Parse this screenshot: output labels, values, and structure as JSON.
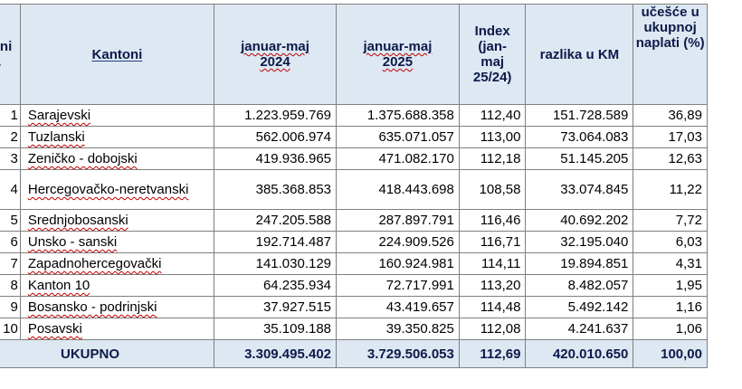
{
  "header": {
    "rb": "Redni br.",
    "kantoni": "Kantoni",
    "col_2024": "januar-maj 2024",
    "col_2025": "januar-maj 2025",
    "index": "Index (jan-maj 25/24)",
    "razlika": "razlika u KM",
    "ucesce": "učešće u ukupnoj naplati (%)"
  },
  "rows": [
    {
      "no": "1",
      "name": "Sarajevski",
      "y2024": "1.223.959.769",
      "y2025": "1.375.688.358",
      "index": "112,40",
      "razlika": "151.728.589",
      "ucesce": "36,89"
    },
    {
      "no": "2",
      "name": "Tuzlanski",
      "y2024": "562.006.974",
      "y2025": "635.071.057",
      "index": "113,00",
      "razlika": "73.064.083",
      "ucesce": "17,03"
    },
    {
      "no": "3",
      "name": "Zeničko - dobojski",
      "y2024": "419.936.965",
      "y2025": "471.082.170",
      "index": "112,18",
      "razlika": "51.145.205",
      "ucesce": "12,63"
    },
    {
      "no": "4",
      "name": "Hercegovačko-neretvanski",
      "y2024": "385.368.853",
      "y2025": "418.443.698",
      "index": "108,58",
      "razlika": "33.074.845",
      "ucesce": "11,22"
    },
    {
      "no": "5",
      "name": "Srednjobosanski",
      "y2024": "247.205.588",
      "y2025": "287.897.791",
      "index": "116,46",
      "razlika": "40.692.202",
      "ucesce": "7,72"
    },
    {
      "no": "6",
      "name": "Unsko - sanski",
      "y2024": "192.714.487",
      "y2025": "224.909.526",
      "index": "116,71",
      "razlika": "32.195.040",
      "ucesce": "6,03"
    },
    {
      "no": "7",
      "name": "Zapadnohercegovački",
      "y2024": "141.030.129",
      "y2025": "160.924.981",
      "index": "114,11",
      "razlika": "19.894.851",
      "ucesce": "4,31"
    },
    {
      "no": "8",
      "name": "Kanton 10",
      "y2024": "64.235.934",
      "y2025": "72.717.991",
      "index": "113,20",
      "razlika": "8.482.057",
      "ucesce": "1,95"
    },
    {
      "no": "9",
      "name": "Bosansko - podrinjski",
      "y2024": "37.927.515",
      "y2025": "43.419.657",
      "index": "114,48",
      "razlika": "5.492.142",
      "ucesce": "1,16"
    },
    {
      "no": "10",
      "name": "Posavski",
      "y2024": "35.109.188",
      "y2025": "39.350.825",
      "index": "112,08",
      "razlika": "4.241.637",
      "ucesce": "1,06"
    }
  ],
  "total": {
    "label": "UKUPNO",
    "y2024": "3.309.495.402",
    "y2025": "3.729.506.053",
    "index": "112,69",
    "razlika": "420.010.650",
    "ucesce": "100,00"
  }
}
